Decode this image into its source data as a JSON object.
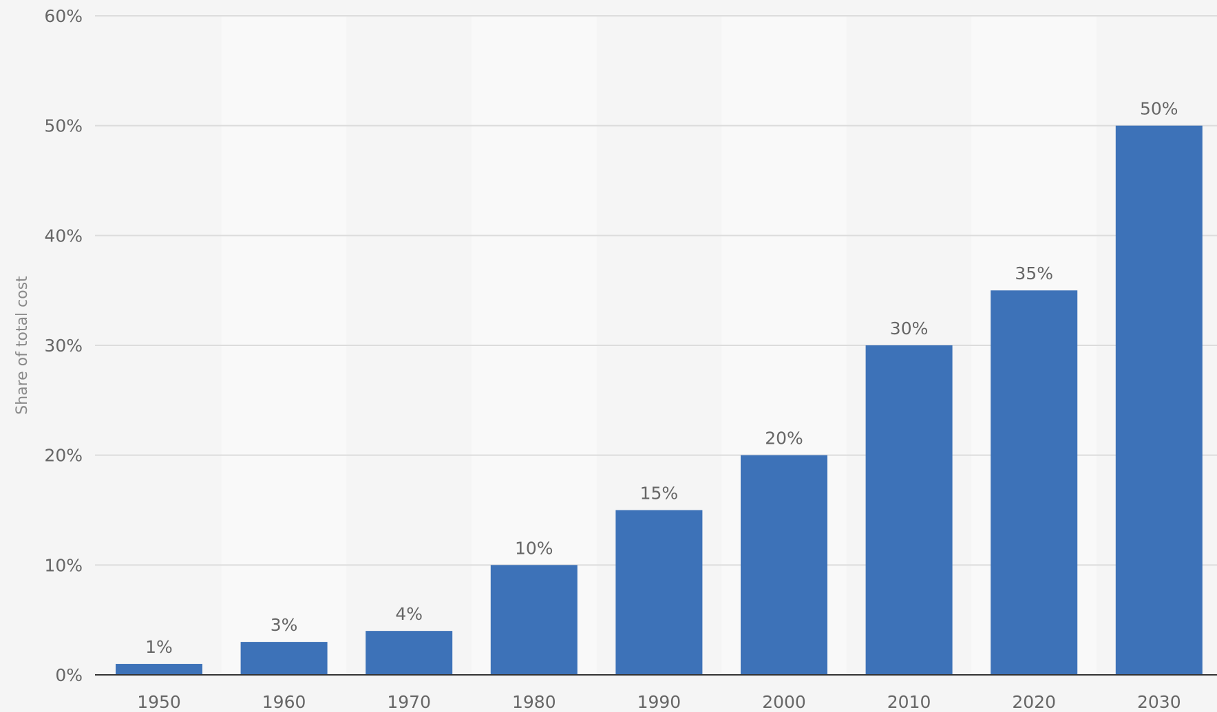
{
  "chart_data": {
    "type": "bar",
    "categories": [
      "1950",
      "1960",
      "1970",
      "1980",
      "1990",
      "2000",
      "2010",
      "2020",
      "2030"
    ],
    "values": [
      1,
      3,
      4,
      10,
      15,
      20,
      30,
      35,
      50
    ],
    "data_labels": [
      "1%",
      "3%",
      "4%",
      "10%",
      "15%",
      "20%",
      "30%",
      "35%",
      "50%"
    ],
    "ylabel": "Share of total cost",
    "xlabel": "",
    "ylim": [
      0,
      60
    ],
    "yticks": [
      0,
      10,
      20,
      30,
      40,
      50,
      60
    ],
    "ytick_labels": [
      "0%",
      "10%",
      "20%",
      "30%",
      "40%",
      "50%",
      "60%"
    ],
    "grid": true,
    "legend": "none",
    "colors": {
      "bar": "#3d72b8",
      "background": "#f5f5f5",
      "band_alt": "#f9f9f9",
      "grid": "#dcdcdc",
      "axis": "#333333",
      "text": "#666666"
    }
  }
}
